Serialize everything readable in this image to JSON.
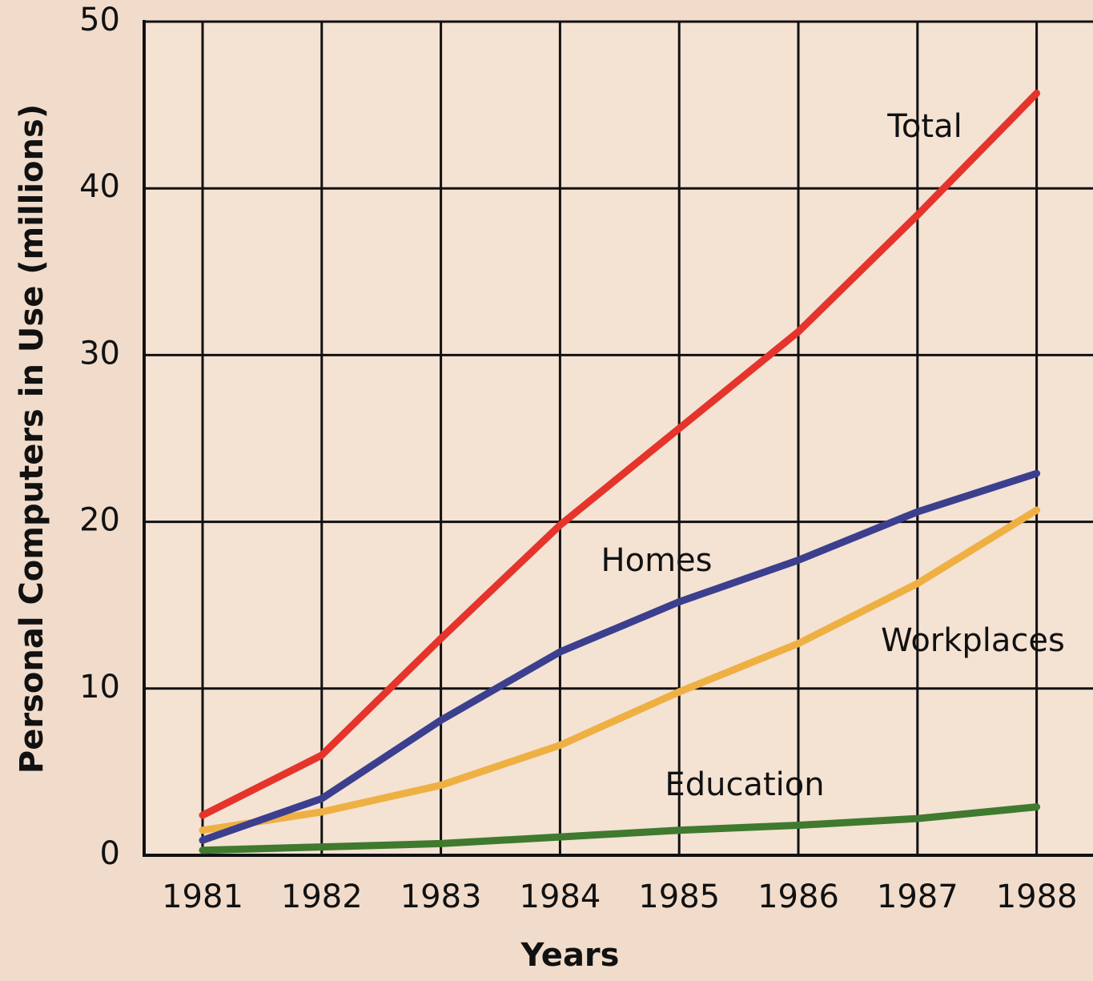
{
  "chart_data": {
    "type": "line",
    "x_label": "Years",
    "y_label": "Personal Computers in Use (millions)",
    "categories": [
      "1981",
      "1982",
      "1983",
      "1984",
      "1985",
      "1986",
      "1987",
      "1988"
    ],
    "series": [
      {
        "name": "Total",
        "color": "#e5342b",
        "values": [
          2.4,
          6.0,
          13.0,
          19.8,
          25.6,
          31.4,
          38.4,
          45.7
        ]
      },
      {
        "name": "Homes",
        "color": "#3b3f8e",
        "values": [
          0.9,
          3.4,
          8.1,
          12.2,
          15.2,
          17.7,
          20.6,
          22.9
        ]
      },
      {
        "name": "Workplaces",
        "color": "#efb043",
        "values": [
          1.5,
          2.6,
          4.2,
          6.6,
          9.8,
          12.7,
          16.3,
          20.7
        ]
      },
      {
        "name": "Education",
        "color": "#3f7a2f",
        "values": [
          0.3,
          0.5,
          0.7,
          1.1,
          1.5,
          1.8,
          2.2,
          2.9
        ]
      }
    ],
    "ylim": [
      0,
      50
    ],
    "yticks": [
      0,
      10,
      20,
      30,
      40,
      50
    ],
    "grid": true
  }
}
